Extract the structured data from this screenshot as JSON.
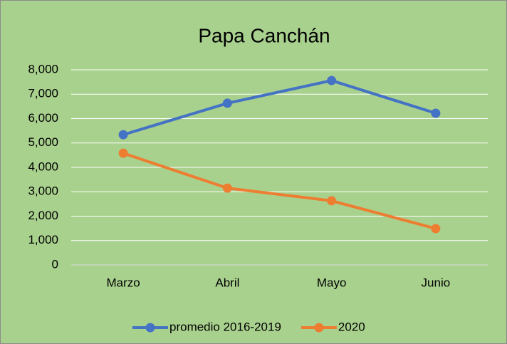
{
  "chart_data": {
    "type": "line",
    "title": "Papa Canchán",
    "categories": [
      "Marzo",
      "Abril",
      "Mayo",
      "Junio"
    ],
    "series": [
      {
        "name": "promedio 2016-2019",
        "color": "#4472c4",
        "values": [
          5340,
          6630,
          7560,
          6220
        ]
      },
      {
        "name": "2020",
        "color": "#ed7d31",
        "values": [
          4580,
          3150,
          2630,
          1490
        ]
      }
    ],
    "ylim": [
      0,
      8000
    ],
    "yticks": [
      0,
      {
        "value": 1000,
        "label": "1,000"
      },
      {
        "value": 2000,
        "label": "2,000"
      },
      {
        "value": 3000,
        "label": "3,000"
      },
      {
        "value": 4000,
        "label": "4,000"
      },
      {
        "value": 5000,
        "label": "5,000"
      },
      {
        "value": 6000,
        "label": "6,000"
      },
      {
        "value": 7000,
        "label": "7,000"
      },
      {
        "value": 8000,
        "label": "8,000"
      }
    ],
    "grid": true,
    "legend": "bottom"
  }
}
